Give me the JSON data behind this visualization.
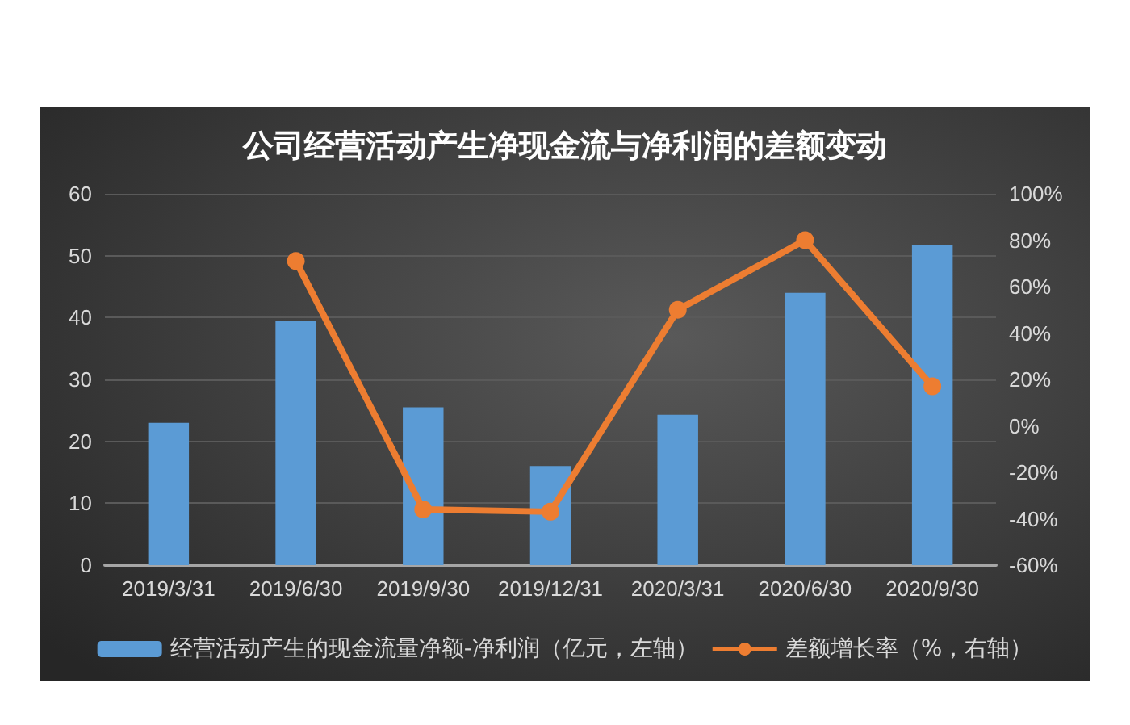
{
  "chart_data": {
    "type": "bar",
    "title": "公司经营活动产生净现金流与净利润的差额变动",
    "categories": [
      "2019/3/31",
      "2019/6/30",
      "2019/9/30",
      "2019/12/31",
      "2020/3/31",
      "2020/6/30",
      "2020/9/30"
    ],
    "series": [
      {
        "name": "经营活动产生的现金流量净额-净利润（亿元，左轴）",
        "color": "#5b9bd5",
        "values": [
          23,
          39.5,
          25.5,
          16,
          24.3,
          44,
          51.7
        ]
      },
      {
        "name": "差额增长率（%，右轴）",
        "type": "line",
        "axis": "y2",
        "color": "#ed7d31",
        "marker": "circle",
        "values": [
          null,
          71,
          -36,
          -37,
          50,
          80,
          17
        ]
      }
    ],
    "ylim": [
      0,
      60
    ],
    "yticks": [
      0,
      10,
      20,
      30,
      40,
      50,
      60
    ],
    "y2lim": [
      -60,
      100
    ],
    "y2ticks": [
      {
        "value": -60,
        "label": "-60%"
      },
      {
        "value": -40,
        "label": "-40%"
      },
      {
        "value": -20,
        "label": "-20%"
      },
      {
        "value": 0,
        "label": "0%"
      },
      {
        "value": 20,
        "label": "20%"
      },
      {
        "value": 40,
        "label": "40%"
      },
      {
        "value": 60,
        "label": "60%"
      },
      {
        "value": 80,
        "label": "80%"
      },
      {
        "value": 100,
        "label": "100%"
      }
    ],
    "grid": "y",
    "legend": "bottom"
  }
}
